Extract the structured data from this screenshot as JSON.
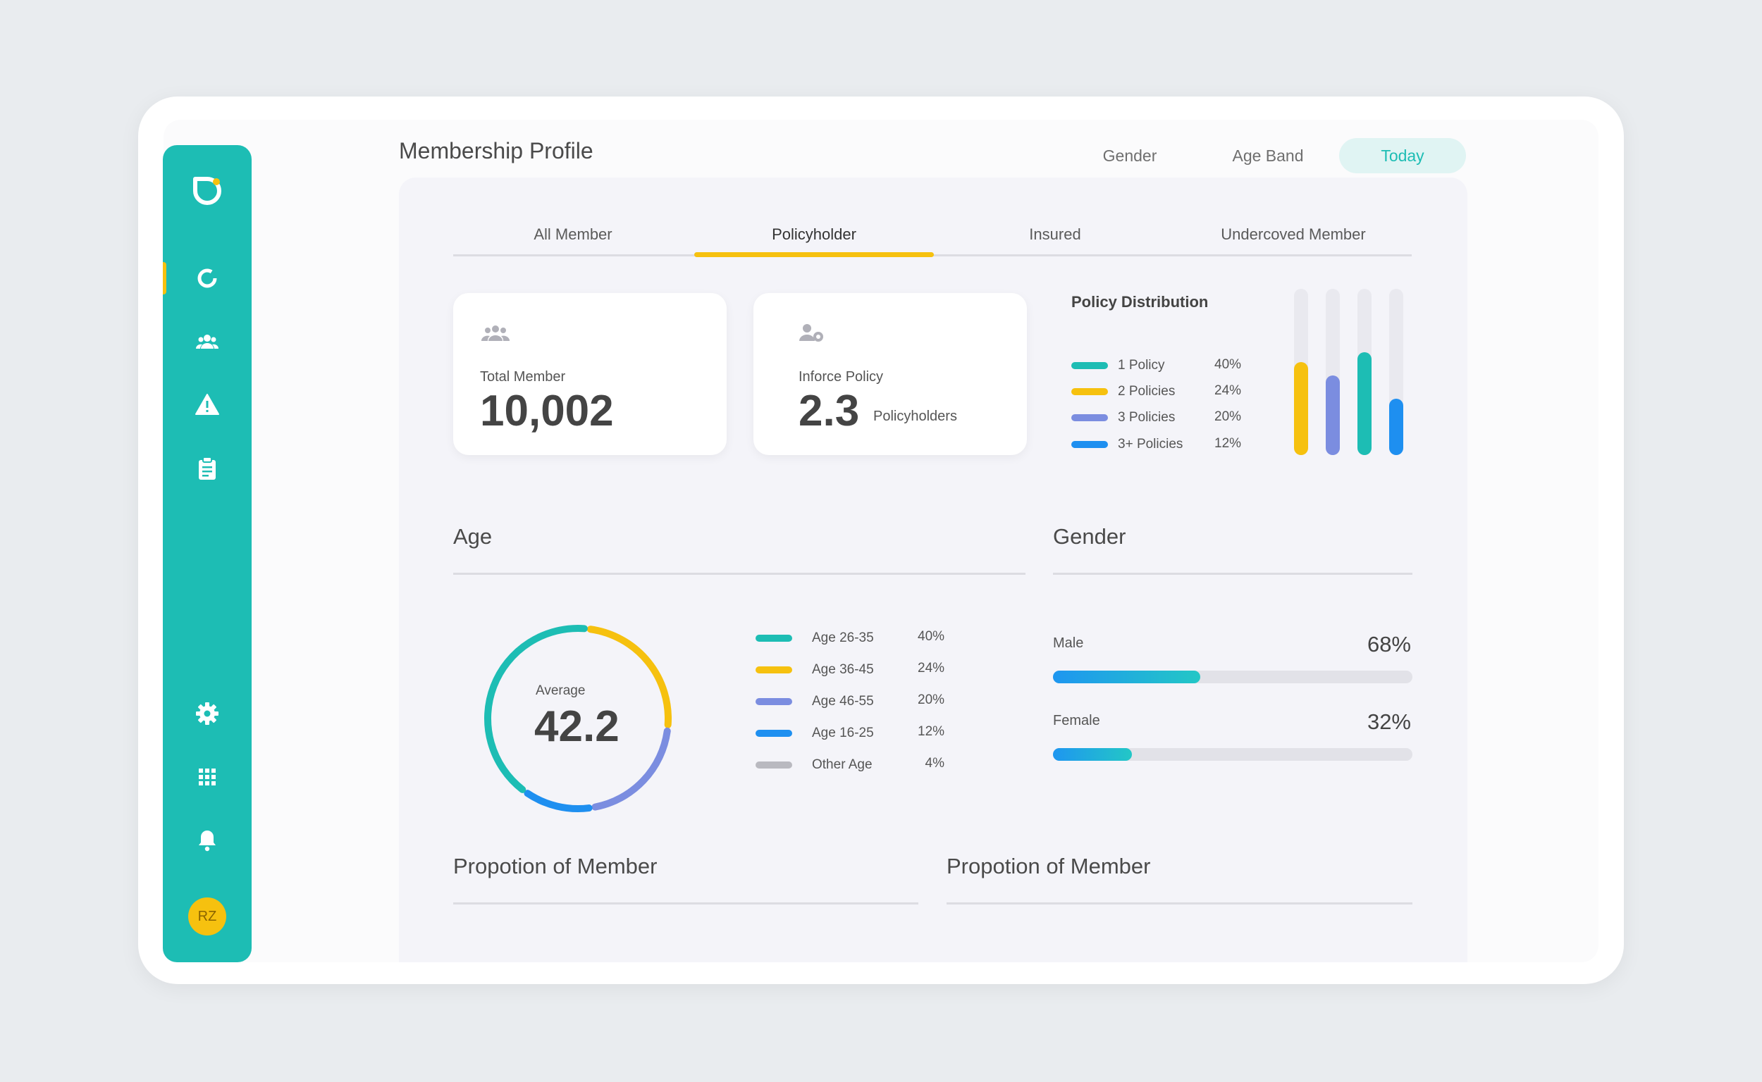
{
  "header": {
    "title": "Membership Profile",
    "tabs": [
      {
        "label": "Gender",
        "active": false
      },
      {
        "label": "Age Band",
        "active": false
      },
      {
        "label": "Today",
        "active": true
      }
    ]
  },
  "sidebar": {
    "avatar_initials": "RZ",
    "items": [
      {
        "icon": "dashboard-ring-icon",
        "active": true
      },
      {
        "icon": "people-icon",
        "active": false
      },
      {
        "icon": "warning-icon",
        "active": false
      },
      {
        "icon": "clipboard-icon",
        "active": false
      },
      {
        "icon": "gear-icon",
        "active": false
      },
      {
        "icon": "apps-grid-icon",
        "active": false
      },
      {
        "icon": "bell-icon",
        "active": false
      }
    ]
  },
  "subtabs": [
    {
      "label": "All Member",
      "active": false
    },
    {
      "label": "Policyholder",
      "active": true
    },
    {
      "label": "Insured",
      "active": false
    },
    {
      "label": "Undercoved Member",
      "active": false
    }
  ],
  "cards": {
    "total_member": {
      "label": "Total Member",
      "value": "10,002"
    },
    "inforce_policy": {
      "label": "Inforce Policy",
      "value": "2.3",
      "unit": "Policyholders"
    }
  },
  "policy_distribution": {
    "title": "Policy Distribution",
    "items": [
      {
        "label": "1 Policy",
        "pct": "40%",
        "color": "#1dbdb4"
      },
      {
        "label": "2 Policies",
        "pct": "24%",
        "color": "#f6c10f"
      },
      {
        "label": "3 Policies",
        "pct": "20%",
        "color": "#7b8de0"
      },
      {
        "label": "3+ Policies",
        "pct": "12%",
        "color": "#1e8ff0"
      }
    ]
  },
  "age": {
    "title": "Age",
    "average_label": "Average",
    "average_value": "42.2",
    "items": [
      {
        "label": "Age 26-35",
        "pct": "40%",
        "color": "#1dbdb4"
      },
      {
        "label": "Age 36-45",
        "pct": "24%",
        "color": "#f6c10f"
      },
      {
        "label": "Age 46-55",
        "pct": "20%",
        "color": "#7b8de0"
      },
      {
        "label": "Age 16-25",
        "pct": "12%",
        "color": "#1e8ff0"
      },
      {
        "label": "Other Age",
        "pct": "4%",
        "color": "#b9b9c0"
      }
    ]
  },
  "gender": {
    "title": "Gender",
    "items": [
      {
        "label": "Male",
        "pct": "68%",
        "fraction": 0.41
      },
      {
        "label": "Female",
        "pct": "32%",
        "fraction": 0.22
      }
    ]
  },
  "proportion": {
    "left_title": "Propotion of Member",
    "right_title": "Propotion of Member"
  },
  "chart_data": [
    {
      "type": "bar",
      "title": "Policy Distribution",
      "categories": [
        "2 Policies",
        "3 Policies",
        "1 Policy",
        "3+ Policies"
      ],
      "values": [
        24,
        20,
        40,
        12
      ],
      "fill_fraction": [
        0.56,
        0.48,
        0.62,
        0.34
      ],
      "colors": [
        "#f6c10f",
        "#7b8de0",
        "#1dbdb4",
        "#1e8ff0"
      ]
    },
    {
      "type": "pie",
      "title": "Age",
      "categories": [
        "Age 26-35",
        "Age 36-45",
        "Age 46-55",
        "Age 16-25",
        "Other Age"
      ],
      "values": [
        40,
        24,
        20,
        12,
        4
      ],
      "colors": [
        "#1dbdb4",
        "#f6c10f",
        "#7b8de0",
        "#1e8ff0",
        "#b9b9c0"
      ]
    }
  ]
}
